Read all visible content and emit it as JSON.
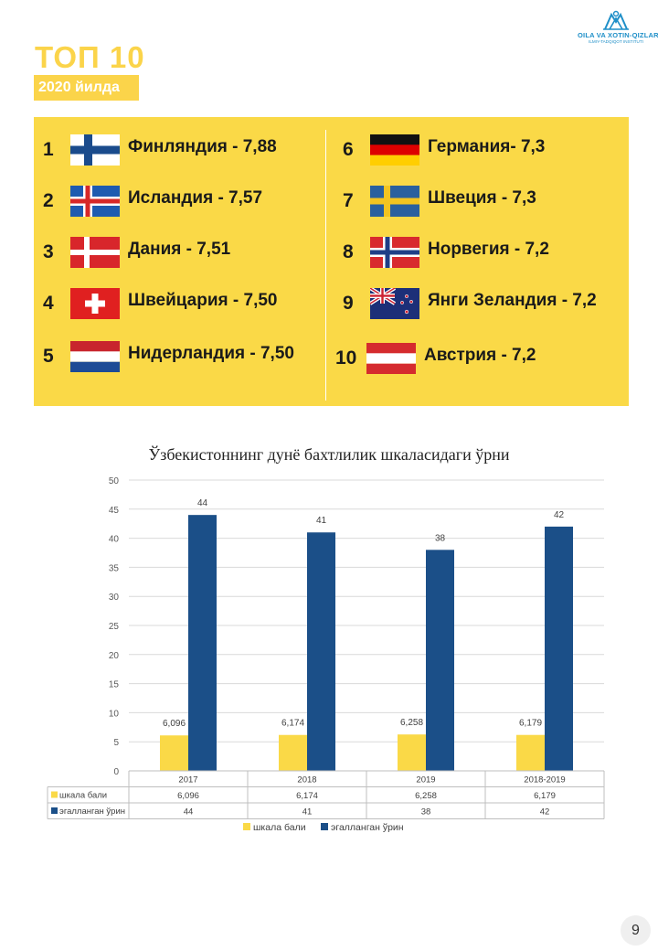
{
  "logo": {
    "line1": "OILA VA XOTIN-QIZLAR",
    "line2": "ILMIY-TADQIQOT INSTITUTI"
  },
  "header": {
    "title": "ТОП 10",
    "subtitle": "2020 йилда"
  },
  "rankings": [
    {
      "rank": "1",
      "text": "Финляндия - 7,88",
      "flag": "finland-flag-icon"
    },
    {
      "rank": "2",
      "text": "Исландия - 7,57",
      "flag": "iceland-flag-icon"
    },
    {
      "rank": "3",
      "text": "Дания - 7,51",
      "flag": "denmark-flag-icon"
    },
    {
      "rank": "4",
      "text": "Швейцария - 7,50",
      "flag": "switzerland-flag-icon"
    },
    {
      "rank": "5",
      "text": "Нидерландия - 7,50",
      "flag": "netherlands-flag-icon"
    },
    {
      "rank": "6",
      "text": "Германия- 7,3",
      "flag": "germany-flag-icon"
    },
    {
      "rank": "7",
      "text": "Швеция - 7,3",
      "flag": "sweden-flag-icon"
    },
    {
      "rank": "8",
      "text": "Норвегия - 7,2",
      "flag": "norway-flag-icon"
    },
    {
      "rank": "9",
      "text": "Янги Зеландия - 7,2",
      "flag": "new-zealand-flag-icon"
    },
    {
      "rank": "10",
      "text": "Австрия - 7,2",
      "flag": "austria-flag-icon"
    }
  ],
  "colors": {
    "yellow": "#fad947",
    "blue": "#1b4f88",
    "grid": "#d9d9d9"
  },
  "chart_data": {
    "type": "bar",
    "title": "Ўзбекистоннинг дунё бахтлилик шкаласидаги ўрни",
    "categories": [
      "2017",
      "2018",
      "2019",
      "2018-2019"
    ],
    "series": [
      {
        "name": "шкала бали",
        "values": [
          6.096,
          6.174,
          6.258,
          6.179
        ],
        "labels": [
          "6,096",
          "6,174",
          "6,258",
          "6,179"
        ],
        "color": "#fad947"
      },
      {
        "name": "эгалланган ўрин",
        "values": [
          44,
          41,
          38,
          42
        ],
        "labels": [
          "44",
          "41",
          "38",
          "42"
        ],
        "color": "#1b4f88"
      }
    ],
    "yticks": [
      "0",
      "5",
      "10",
      "15",
      "20",
      "25",
      "30",
      "35",
      "40",
      "45",
      "50"
    ],
    "ylim": [
      0,
      50
    ],
    "grid": true,
    "legend": "bottom",
    "data_table": true
  },
  "page_number": "9"
}
